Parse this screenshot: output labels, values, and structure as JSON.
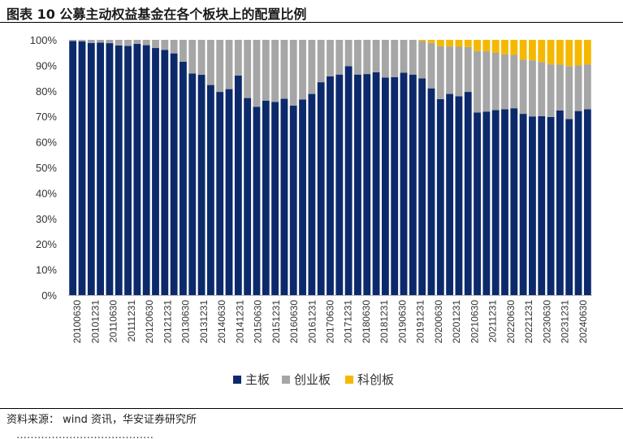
{
  "title": "图表 10 公募主动权益基金在各个板块上的配置比例",
  "source": "资料来源： wind 资讯，华安证券研究所",
  "next_line_partial": "…………………………………",
  "colors": {
    "main": "#0c2a6b",
    "gem": "#a6a6a6",
    "star": "#f5b800"
  },
  "chart_data": {
    "type": "bar",
    "stacked": true,
    "categories": [
      "20100630",
      "20101231",
      "20110630",
      "20111231",
      "20120630",
      "20121231",
      "20130630",
      "20131231",
      "20140630",
      "20141231",
      "20150630",
      "20151231",
      "20160630",
      "20161231",
      "20170630",
      "20171231",
      "20180630",
      "20181231",
      "20190630",
      "20191231",
      "20200630",
      "20201231",
      "20210630",
      "20211231",
      "20220630",
      "20221231",
      "20230630",
      "20231231",
      "20240630"
    ],
    "quarterly_values": {
      "main": [
        99.5,
        99.4,
        98.8,
        98.9,
        98.7,
        97.8,
        97.6,
        98.4,
        97.9,
        96.8,
        96.1,
        94.7,
        91.4,
        86.8,
        86.3,
        82.3,
        79.6,
        80.7,
        86.0,
        77.2,
        73.8,
        76.2,
        75.7,
        76.9,
        74.2,
        76.6,
        78.8,
        83.4,
        85.7,
        86.4,
        89.7,
        86.4,
        86.6,
        87.3,
        85.2,
        85.4,
        87.1,
        86.4,
        84.9,
        81.0,
        76.8,
        78.8,
        77.9,
        79.6,
        71.5,
        71.9,
        72.5,
        72.8,
        73.2,
        71.0,
        70.0,
        70.1,
        69.8,
        72.3,
        69.0,
        72.1,
        72.8
      ],
      "gem": [
        0.5,
        0.6,
        1.2,
        1.1,
        1.3,
        2.2,
        2.4,
        1.6,
        2.1,
        3.2,
        3.9,
        5.3,
        8.6,
        13.2,
        13.7,
        17.7,
        20.4,
        19.3,
        14.0,
        22.8,
        26.2,
        23.8,
        24.3,
        23.1,
        25.8,
        23.4,
        21.2,
        16.6,
        14.3,
        13.6,
        10.3,
        13.6,
        13.4,
        12.7,
        14.8,
        14.6,
        12.9,
        13.6,
        14.6,
        17.8,
        20.7,
        18.6,
        19.4,
        17.6,
        24.1,
        23.6,
        22.4,
        21.5,
        20.9,
        21.2,
        22.0,
        21.2,
        20.6,
        18.0,
        20.7,
        17.9,
        17.6
      ],
      "star": [
        0,
        0,
        0,
        0,
        0,
        0,
        0,
        0,
        0,
        0,
        0,
        0,
        0,
        0,
        0,
        0,
        0,
        0,
        0,
        0,
        0,
        0,
        0,
        0,
        0,
        0,
        0,
        0,
        0,
        0,
        0,
        0,
        0,
        0,
        0,
        0,
        0,
        0,
        0.5,
        1.2,
        2.5,
        2.6,
        2.7,
        2.8,
        4.4,
        4.5,
        5.1,
        5.7,
        5.9,
        7.8,
        8.0,
        8.7,
        9.6,
        9.7,
        10.3,
        10.0,
        9.6
      ]
    },
    "series": [
      {
        "name": "主板",
        "key": "main"
      },
      {
        "name": "创业板",
        "key": "gem"
      },
      {
        "name": "科创板",
        "key": "star"
      }
    ],
    "ylim": [
      0,
      100
    ],
    "yticks": [
      "0%",
      "10%",
      "20%",
      "30%",
      "40%",
      "50%",
      "60%",
      "70%",
      "80%",
      "90%",
      "100%"
    ],
    "grid": false,
    "legend_position": "bottom-center"
  }
}
